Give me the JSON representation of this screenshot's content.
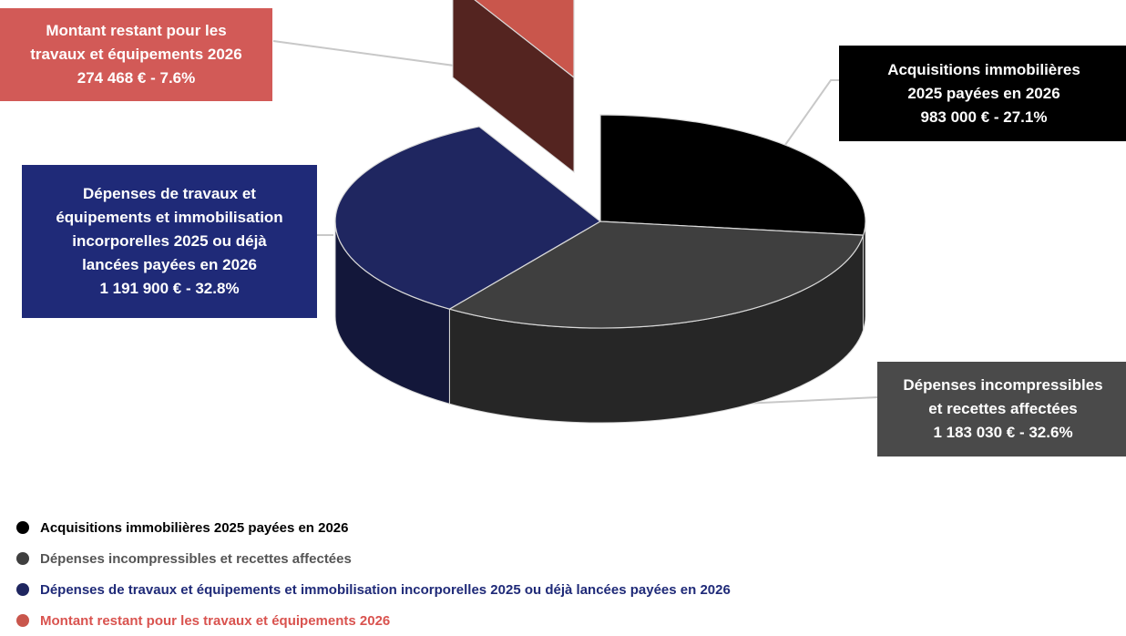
{
  "chart_data": {
    "type": "pie",
    "title": "",
    "series": [
      {
        "name": "Acquisitions immobilières 2025 payées en 2026",
        "value": 983000,
        "percent": 27.1,
        "label_lines": [
          "Acquisitions immobilières",
          "2025 payées en 2026",
          "983 000 € - 27.1%"
        ],
        "color": "#000000",
        "box_color": "#000000",
        "legend_text_color": "#000000"
      },
      {
        "name": "Dépenses incompressibles et recettes affectées",
        "value": 1183030,
        "percent": 32.6,
        "label_lines": [
          "Dépenses incompressibles",
          "et recettes affectées",
          "1 183 030 € - 32.6%"
        ],
        "color": "#3f3f3f",
        "box_color": "#4a4a4a",
        "legend_text_color": "#555555"
      },
      {
        "name": "Dépenses de travaux et équipements et immobilisation incorporelles 2025 ou déjà lancées payées en 2026",
        "value": 1191900,
        "percent": 32.8,
        "label_lines": [
          "Dépenses de travaux et",
          "équipements et immobilisation",
          "incorporelles 2025 ou déjà",
          "lancées payées en 2026",
          "1 191 900 € - 32.8%"
        ],
        "color": "#1f2660",
        "box_color": "#1f2a78",
        "legend_text_color": "#1f2a78"
      },
      {
        "name": "Montant restant pour les travaux et équipements 2026",
        "value": 274468,
        "percent": 7.6,
        "label_lines": [
          "Montant restant pour les",
          "travaux et équipements 2026",
          "274 468 € - 7.6%"
        ],
        "color": "#c9564c",
        "box_color": "#d25a57",
        "legend_text_color": "#d9534f"
      }
    ],
    "legend_placement": "bottom"
  }
}
